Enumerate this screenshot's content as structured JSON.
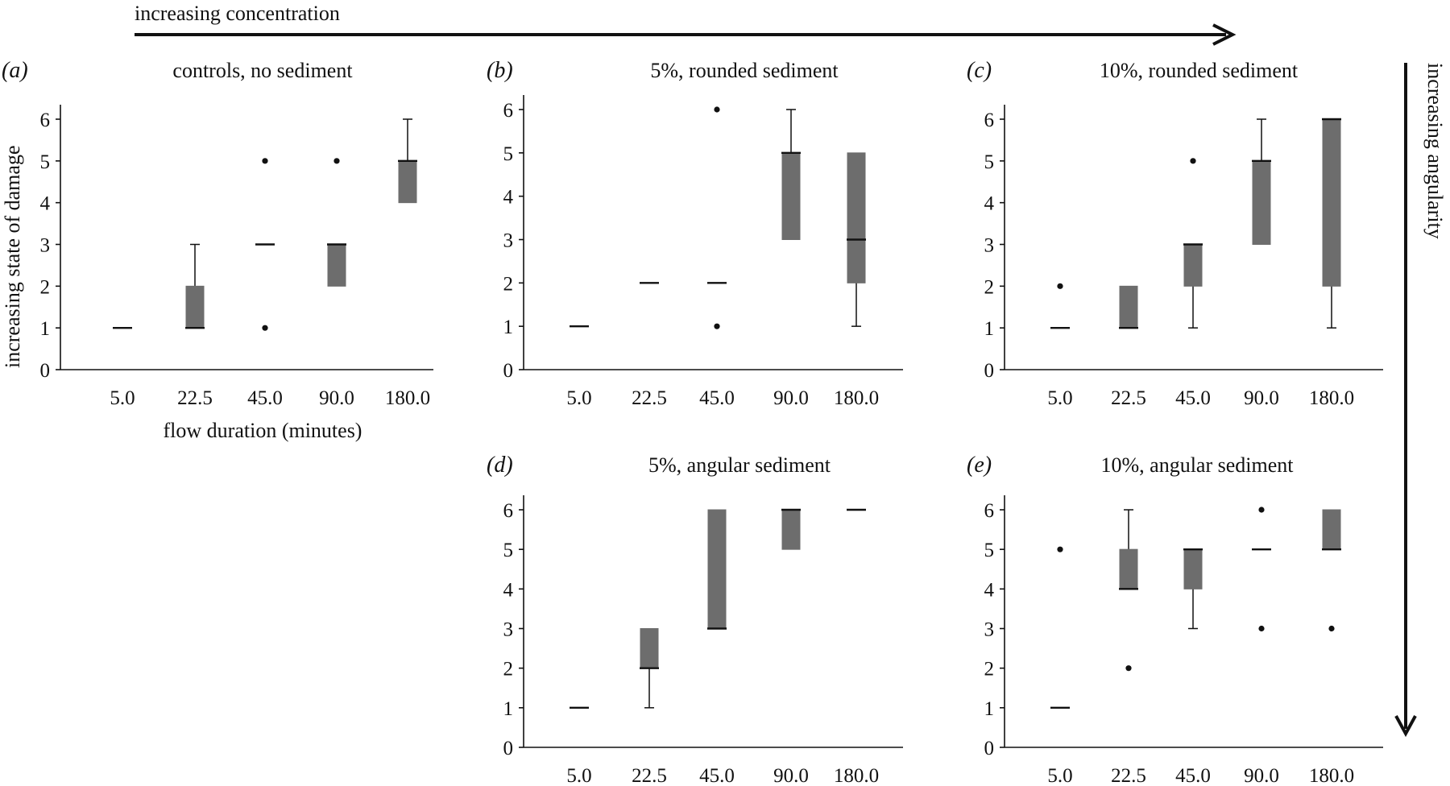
{
  "header": {
    "concentration_label": "increasing concentration",
    "angularity_label": "increasing angularity",
    "damage_label": "increasing state of damage",
    "x_axis_label": "flow duration (minutes)"
  },
  "chart_data": [
    {
      "type": "box",
      "panel": "(a)",
      "title": "controls, no sediment",
      "xlabel": "flow duration (minutes)",
      "ylabel": "increasing state of damage",
      "categories": [
        "5.0",
        "22.5",
        "45.0",
        "90.0",
        "180.0"
      ],
      "ylim": [
        0,
        6
      ],
      "yticks": [
        0,
        1,
        2,
        3,
        4,
        5,
        6
      ],
      "boxes": [
        {
          "q1": 1,
          "median": 1,
          "q3": 1,
          "whisker_low": 1,
          "whisker_high": 1,
          "outliers": []
        },
        {
          "q1": 1,
          "median": 1,
          "q3": 2,
          "whisker_low": 1,
          "whisker_high": 3,
          "outliers": []
        },
        {
          "q1": 3,
          "median": 3,
          "q3": 3,
          "whisker_low": 3,
          "whisker_high": 3,
          "outliers": [
            1,
            5
          ]
        },
        {
          "q1": 2,
          "median": 3,
          "q3": 3,
          "whisker_low": 2,
          "whisker_high": 3,
          "outliers": [
            5
          ]
        },
        {
          "q1": 4,
          "median": 5,
          "q3": 5,
          "whisker_low": 4,
          "whisker_high": 6,
          "outliers": []
        }
      ]
    },
    {
      "type": "box",
      "panel": "(b)",
      "title": "5%, rounded sediment",
      "categories": [
        "5.0",
        "22.5",
        "45.0",
        "90.0",
        "180.0"
      ],
      "ylim": [
        0,
        6
      ],
      "yticks": [
        0,
        1,
        2,
        3,
        4,
        5,
        6
      ],
      "boxes": [
        {
          "q1": 1,
          "median": 1,
          "q3": 1,
          "whisker_low": 1,
          "whisker_high": 1,
          "outliers": []
        },
        {
          "q1": 2,
          "median": 2,
          "q3": 2,
          "whisker_low": 2,
          "whisker_high": 2,
          "outliers": []
        },
        {
          "q1": 2,
          "median": 2,
          "q3": 2,
          "whisker_low": 2,
          "whisker_high": 2,
          "outliers": [
            1,
            6
          ]
        },
        {
          "q1": 3,
          "median": 5,
          "q3": 5,
          "whisker_low": 3,
          "whisker_high": 6,
          "outliers": []
        },
        {
          "q1": 2,
          "median": 3,
          "q3": 5,
          "whisker_low": 1,
          "whisker_high": 5,
          "outliers": []
        }
      ]
    },
    {
      "type": "box",
      "panel": "(c)",
      "title": "10%, rounded sediment",
      "categories": [
        "5.0",
        "22.5",
        "45.0",
        "90.0",
        "180.0"
      ],
      "ylim": [
        0,
        6
      ],
      "yticks": [
        0,
        1,
        2,
        3,
        4,
        5,
        6
      ],
      "boxes": [
        {
          "q1": 1,
          "median": 1,
          "q3": 1,
          "whisker_low": 1,
          "whisker_high": 1,
          "outliers": [
            2
          ]
        },
        {
          "q1": 1,
          "median": 1,
          "q3": 2,
          "whisker_low": 1,
          "whisker_high": 2,
          "outliers": []
        },
        {
          "q1": 2,
          "median": 3,
          "q3": 3,
          "whisker_low": 1,
          "whisker_high": 3,
          "outliers": [
            5
          ]
        },
        {
          "q1": 3,
          "median": 5,
          "q3": 5,
          "whisker_low": 3,
          "whisker_high": 6,
          "outliers": []
        },
        {
          "q1": 2,
          "median": 6,
          "q3": 6,
          "whisker_low": 1,
          "whisker_high": 6,
          "outliers": []
        }
      ]
    },
    {
      "type": "box",
      "panel": "(d)",
      "title": "5%, angular sediment",
      "categories": [
        "5.0",
        "22.5",
        "45.0",
        "90.0",
        "180.0"
      ],
      "ylim": [
        0,
        6
      ],
      "yticks": [
        0,
        1,
        2,
        3,
        4,
        5,
        6
      ],
      "boxes": [
        {
          "q1": 1,
          "median": 1,
          "q3": 1,
          "whisker_low": 1,
          "whisker_high": 1,
          "outliers": []
        },
        {
          "q1": 2,
          "median": 2,
          "q3": 3,
          "whisker_low": 1,
          "whisker_high": 3,
          "outliers": []
        },
        {
          "q1": 3,
          "median": 3,
          "q3": 6,
          "whisker_low": 3,
          "whisker_high": 6,
          "outliers": []
        },
        {
          "q1": 5,
          "median": 6,
          "q3": 6,
          "whisker_low": 5,
          "whisker_high": 6,
          "outliers": []
        },
        {
          "q1": 6,
          "median": 6,
          "q3": 6,
          "whisker_low": 6,
          "whisker_high": 6,
          "outliers": []
        }
      ]
    },
    {
      "type": "box",
      "panel": "(e)",
      "title": "10%, angular sediment",
      "categories": [
        "5.0",
        "22.5",
        "45.0",
        "90.0",
        "180.0"
      ],
      "ylim": [
        0,
        6
      ],
      "yticks": [
        0,
        1,
        2,
        3,
        4,
        5,
        6
      ],
      "boxes": [
        {
          "q1": 1,
          "median": 1,
          "q3": 1,
          "whisker_low": 1,
          "whisker_high": 1,
          "outliers": [
            5
          ]
        },
        {
          "q1": 4,
          "median": 4,
          "q3": 5,
          "whisker_low": 4,
          "whisker_high": 6,
          "outliers": [
            2
          ]
        },
        {
          "q1": 4,
          "median": 5,
          "q3": 5,
          "whisker_low": 3,
          "whisker_high": 5,
          "outliers": []
        },
        {
          "q1": 5,
          "median": 5,
          "q3": 5,
          "whisker_low": 5,
          "whisker_high": 5,
          "outliers": [
            3,
            6
          ]
        },
        {
          "q1": 5,
          "median": 5,
          "q3": 6,
          "whisker_low": 5,
          "whisker_high": 6,
          "outliers": [
            3
          ]
        }
      ]
    }
  ]
}
